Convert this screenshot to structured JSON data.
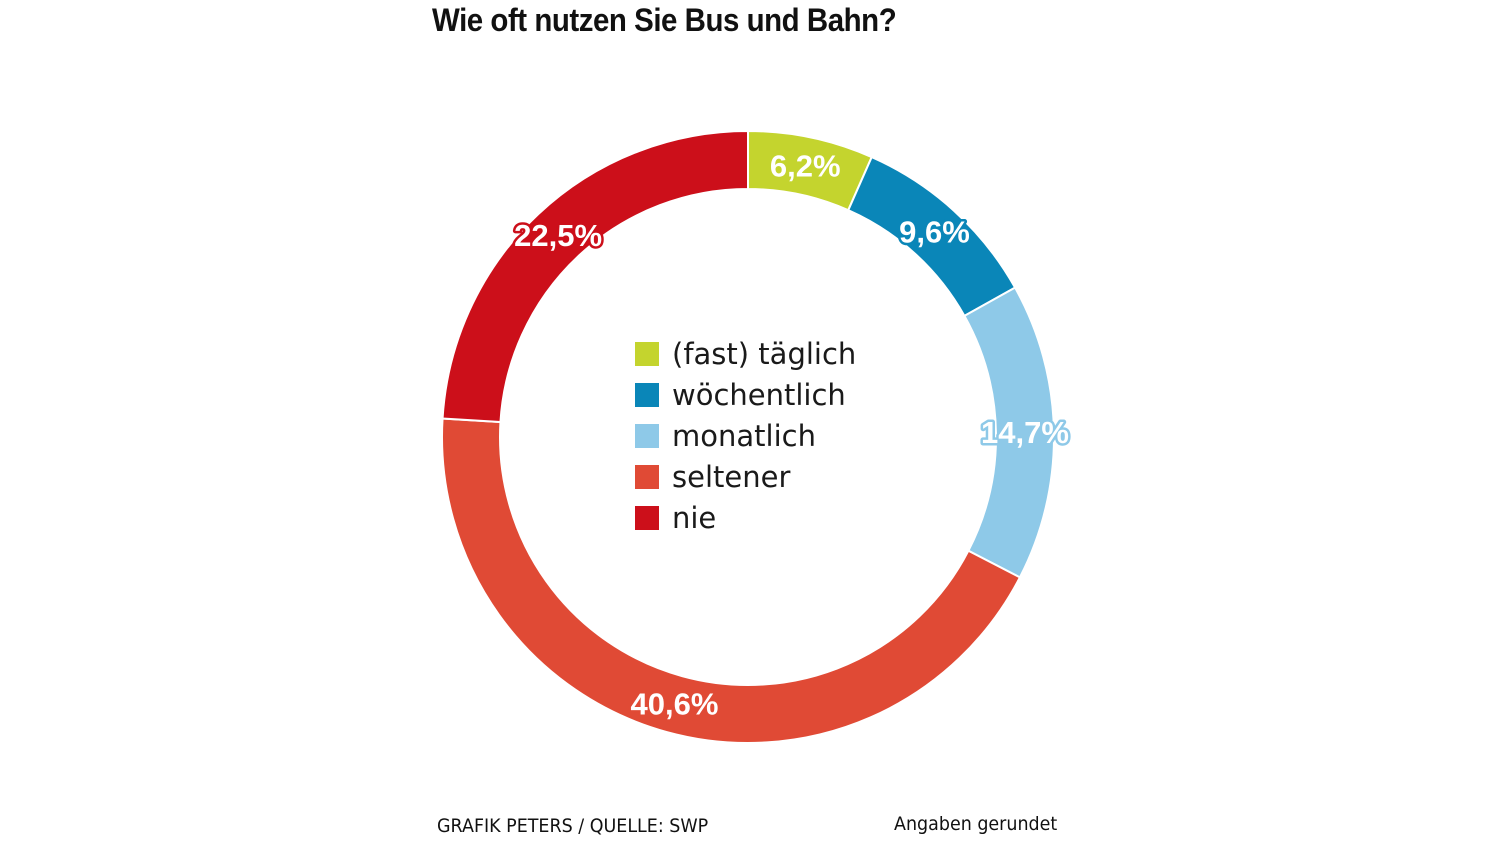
{
  "chart_data": {
    "type": "pie",
    "style": "donut",
    "title": "Wie oft nutzen Sie Bus und Bahn?",
    "categories": [
      "(fast) täglich",
      "wöchentlich",
      "monatlich",
      "seltener",
      "nie"
    ],
    "values": [
      6.2,
      9.6,
      14.7,
      40.6,
      22.5
    ],
    "value_labels": [
      "6,2%",
      "9,6%",
      "14,7%",
      "40,6%",
      "22,5%"
    ],
    "colors": [
      "#c4d42e",
      "#0a86b8",
      "#8ec9e8",
      "#e04a35",
      "#cc0f1a"
    ],
    "legend_placement": "center",
    "start_angle": "top, clockwise"
  },
  "footer": {
    "source": "GRAFIK PETERS / QUELLE: SWP",
    "note": "Angaben gerundet"
  }
}
